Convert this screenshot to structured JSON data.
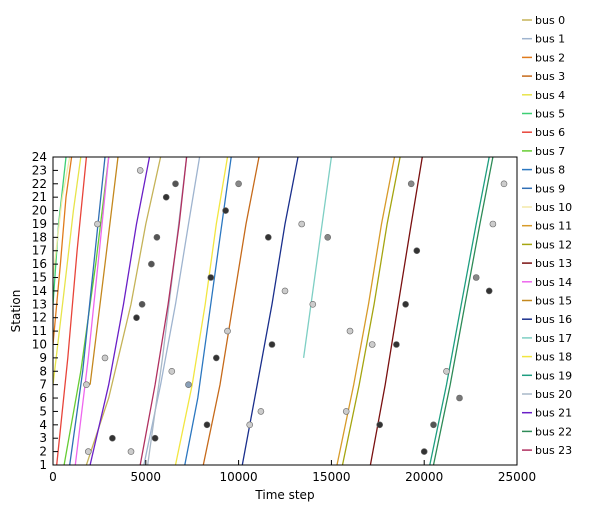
{
  "chart_data": {
    "type": "line",
    "title": "",
    "xlabel": "Time step",
    "ylabel": "Station",
    "xlim": [
      0,
      25000
    ],
    "ylim": [
      1,
      24
    ],
    "xticks": [
      0,
      5000,
      10000,
      15000,
      20000,
      25000
    ],
    "yticks": [
      1,
      2,
      3,
      4,
      5,
      6,
      7,
      8,
      9,
      10,
      11,
      12,
      13,
      14,
      15,
      16,
      17,
      18,
      19,
      20,
      21,
      22,
      23,
      24
    ],
    "grid": false,
    "legend_position": "right",
    "series": [
      {
        "name": "bus  0",
        "color": "#c5b358",
        "x": [
          1800,
          3000,
          4200,
          5000,
          5800
        ],
        "y": [
          1,
          6,
          13,
          19,
          24
        ]
      },
      {
        "name": "bus  1",
        "color": "#9fb4cf",
        "x": [
          4900,
          5800,
          6600,
          7300,
          7900
        ],
        "y": [
          1,
          7,
          13,
          19,
          24
        ]
      },
      {
        "name": "bus  2",
        "color": "#e07b1c",
        "x": [
          0,
          400,
          700,
          1000
        ],
        "y": [
          10,
          16,
          21,
          24
        ]
      },
      {
        "name": "bus  3",
        "color": "#c66a1a",
        "x": [
          8100,
          9000,
          9700,
          10400,
          11100
        ],
        "y": [
          1,
          7,
          13,
          19,
          24
        ]
      },
      {
        "name": "bus  4",
        "color": "#e8e44a",
        "x": [
          0,
          600,
          1100,
          1500
        ],
        "y": [
          7,
          14,
          20,
          24
        ]
      },
      {
        "name": "bus  5",
        "color": "#3dcf74",
        "x": [
          0,
          300,
          700
        ],
        "y": [
          13,
          19,
          24
        ]
      },
      {
        "name": "bus  6",
        "color": "#e8443a",
        "x": [
          200,
          800,
          1300,
          1800
        ],
        "y": [
          1,
          9,
          17,
          24
        ]
      },
      {
        "name": "bus  7",
        "color": "#66cc33",
        "x": [
          600,
          1500,
          2300,
          3000
        ],
        "y": [
          1,
          8,
          16,
          24
        ]
      },
      {
        "name": "bus  8",
        "color": "#2b77c0",
        "x": [
          7100,
          7800,
          8400,
          9000,
          9600
        ],
        "y": [
          1,
          6,
          12,
          18,
          24
        ]
      },
      {
        "name": "bus  9",
        "color": "#2f6eb5",
        "x": [
          900,
          1600,
          2200,
          2800
        ],
        "y": [
          1,
          8,
          16,
          24
        ]
      },
      {
        "name": "bus  10",
        "color": "#f3e9a8",
        "x": [
          0,
          500,
          900
        ],
        "y": [
          15,
          21,
          24
        ]
      },
      {
        "name": "bus  11",
        "color": "#d79b2a",
        "x": [
          15300,
          16200,
          17000,
          17700,
          18400
        ],
        "y": [
          1,
          7,
          13,
          19,
          24
        ]
      },
      {
        "name": "bus  12",
        "color": "#a5a510",
        "x": [
          15600,
          16500,
          17300,
          18000,
          18700
        ],
        "y": [
          1,
          7,
          13,
          19,
          24
        ]
      },
      {
        "name": "bus  13",
        "color": "#7a1010",
        "x": [
          17100,
          17900,
          18600,
          19300,
          19900
        ],
        "y": [
          1,
          7,
          13,
          19,
          24
        ]
      },
      {
        "name": "bus  14",
        "color": "#ee66ee",
        "x": [
          1200,
          1900,
          2500,
          3000
        ],
        "y": [
          1,
          9,
          17,
          24
        ]
      },
      {
        "name": "bus  15",
        "color": "#c4881e",
        "x": [
          2000,
          2800,
          3500
        ],
        "y": [
          7,
          16,
          24
        ]
      },
      {
        "name": "bus  16",
        "color": "#1a2f8c",
        "x": [
          10200,
          11000,
          11800,
          12500,
          13200
        ],
        "y": [
          1,
          7,
          13,
          19,
          24
        ]
      },
      {
        "name": "bus  17",
        "color": "#7ecfc4",
        "x": [
          13500,
          14300,
          15000
        ],
        "y": [
          9,
          17,
          24
        ]
      },
      {
        "name": "bus  18",
        "color": "#f2e640",
        "x": [
          6600,
          7500,
          8200,
          8800,
          9400
        ],
        "y": [
          1,
          7,
          13,
          19,
          24
        ]
      },
      {
        "name": "bus  19",
        "color": "#1e9e80",
        "x": [
          20300,
          21200,
          22000,
          22800,
          23500
        ],
        "y": [
          1,
          7,
          13,
          19,
          24
        ]
      },
      {
        "name": "bus  20",
        "color": "#a8b8c8",
        "x": [
          5100,
          5900,
          6600,
          7200
        ],
        "y": [
          1,
          9,
          17,
          24
        ]
      },
      {
        "name": "bus  21",
        "color": "#6a1fc7",
        "x": [
          2000,
          3000,
          3800,
          4500,
          5200
        ],
        "y": [
          1,
          7,
          13,
          19,
          24
        ]
      },
      {
        "name": "bus  22",
        "color": "#2e8b57",
        "x": [
          20500,
          21400,
          22200,
          23000,
          23700
        ],
        "y": [
          1,
          7,
          13,
          19,
          24
        ]
      },
      {
        "name": "bus  23",
        "color": "#b03060",
        "x": [
          4700,
          5500,
          6200,
          6800,
          7200
        ],
        "y": [
          1,
          7,
          13,
          19,
          24
        ]
      }
    ],
    "markers": [
      {
        "x": 3200,
        "y": 3,
        "color": "#333333"
      },
      {
        "x": 5500,
        "y": 3,
        "color": "#333333"
      },
      {
        "x": 8300,
        "y": 4,
        "color": "#333333"
      },
      {
        "x": 17600,
        "y": 4,
        "color": "#333333"
      },
      {
        "x": 20000,
        "y": 2,
        "color": "#333333"
      },
      {
        "x": 4500,
        "y": 12,
        "color": "#333333"
      },
      {
        "x": 6100,
        "y": 21,
        "color": "#333333"
      },
      {
        "x": 9300,
        "y": 20,
        "color": "#333333"
      },
      {
        "x": 11600,
        "y": 18,
        "color": "#333333"
      },
      {
        "x": 11800,
        "y": 10,
        "color": "#333333"
      },
      {
        "x": 8800,
        "y": 9,
        "color": "#333333"
      },
      {
        "x": 8500,
        "y": 15,
        "color": "#333333"
      },
      {
        "x": 18500,
        "y": 10,
        "color": "#333333"
      },
      {
        "x": 19000,
        "y": 13,
        "color": "#333333"
      },
      {
        "x": 19600,
        "y": 17,
        "color": "#333333"
      },
      {
        "x": 23500,
        "y": 14,
        "color": "#333333"
      },
      {
        "x": 20500,
        "y": 4,
        "color": "#555555"
      },
      {
        "x": 21900,
        "y": 6,
        "color": "#777777"
      },
      {
        "x": 4200,
        "y": 2,
        "color": "#cccccc"
      },
      {
        "x": 1900,
        "y": 2,
        "color": "#cccccc"
      },
      {
        "x": 10600,
        "y": 4,
        "color": "#cccccc"
      },
      {
        "x": 11200,
        "y": 5,
        "color": "#cccccc"
      },
      {
        "x": 12500,
        "y": 14,
        "color": "#cccccc"
      },
      {
        "x": 13400,
        "y": 19,
        "color": "#cccccc"
      },
      {
        "x": 14000,
        "y": 13,
        "color": "#cccccc"
      },
      {
        "x": 1800,
        "y": 7,
        "color": "#cccccc"
      },
      {
        "x": 4700,
        "y": 23,
        "color": "#cccccc"
      },
      {
        "x": 2400,
        "y": 19,
        "color": "#cccccc"
      },
      {
        "x": 16000,
        "y": 11,
        "color": "#cccccc"
      },
      {
        "x": 15800,
        "y": 5,
        "color": "#cccccc"
      },
      {
        "x": 23700,
        "y": 19,
        "color": "#cccccc"
      },
      {
        "x": 24300,
        "y": 22,
        "color": "#cccccc"
      },
      {
        "x": 2800,
        "y": 9,
        "color": "#cccccc"
      },
      {
        "x": 6400,
        "y": 8,
        "color": "#cccccc"
      },
      {
        "x": 9400,
        "y": 11,
        "color": "#cccccc"
      },
      {
        "x": 17200,
        "y": 10,
        "color": "#cccccc"
      },
      {
        "x": 21200,
        "y": 8,
        "color": "#cccccc"
      },
      {
        "x": 7300,
        "y": 7,
        "color": "#8aa0b8"
      },
      {
        "x": 10000,
        "y": 22,
        "color": "#888888"
      },
      {
        "x": 19300,
        "y": 22,
        "color": "#888888"
      },
      {
        "x": 14800,
        "y": 18,
        "color": "#888888"
      },
      {
        "x": 22800,
        "y": 15,
        "color": "#888888"
      },
      {
        "x": 5300,
        "y": 16,
        "color": "#555555"
      },
      {
        "x": 4800,
        "y": 13,
        "color": "#555555"
      },
      {
        "x": 5600,
        "y": 18,
        "color": "#555555"
      },
      {
        "x": 6600,
        "y": 22,
        "color": "#555555"
      }
    ]
  }
}
